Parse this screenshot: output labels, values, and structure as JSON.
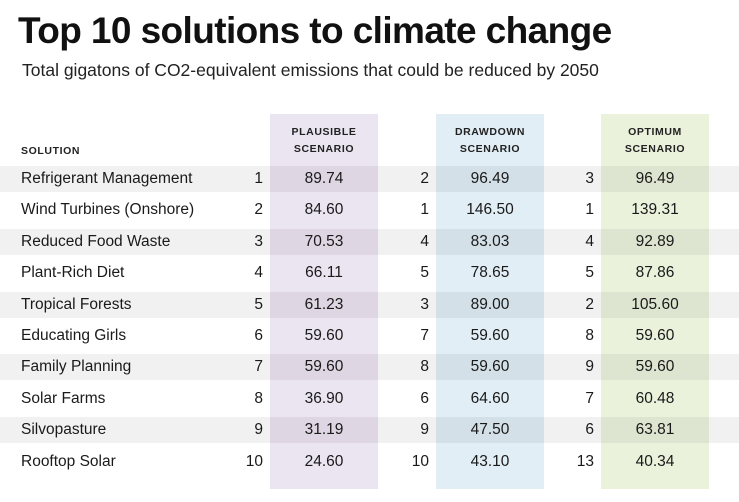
{
  "title": "Top 10 solutions to climate change",
  "subtitle": "Total gigatons of CO2-equivalent emissions that could be reduced by 2050",
  "colors": {
    "plausible": "#ebe4f1",
    "drawdown": "#e1eef5",
    "optimum": "#eaf2dc",
    "row_shade": "#ededed"
  },
  "chart_data": {
    "type": "table",
    "title": "Top 10 solutions to climate change",
    "subtitle": "Total gigatons of CO2-equivalent emissions that could be reduced by 2050",
    "columns": {
      "solution": "SOLUTION",
      "plausible": [
        "PLAUSIBLE",
        "SCENARIO"
      ],
      "drawdown": [
        "DRAWDOWN",
        "SCENARIO"
      ],
      "optimum": [
        "OPTIMUM",
        "SCENARIO"
      ]
    },
    "rows": [
      {
        "solution": "Refrigerant Management",
        "plausible_rank": "1",
        "plausible": "89.74",
        "drawdown_rank": "2",
        "drawdown": "96.49",
        "optimum_rank": "3",
        "optimum": "96.49"
      },
      {
        "solution": "Wind Turbines (Onshore)",
        "plausible_rank": "2",
        "plausible": "84.60",
        "drawdown_rank": "1",
        "drawdown": "146.50",
        "optimum_rank": "1",
        "optimum": "139.31"
      },
      {
        "solution": "Reduced Food Waste",
        "plausible_rank": "3",
        "plausible": "70.53",
        "drawdown_rank": "4",
        "drawdown": "83.03",
        "optimum_rank": "4",
        "optimum": "92.89"
      },
      {
        "solution": "Plant-Rich Diet",
        "plausible_rank": "4",
        "plausible": "66.11",
        "drawdown_rank": "5",
        "drawdown": "78.65",
        "optimum_rank": "5",
        "optimum": "87.86"
      },
      {
        "solution": "Tropical Forests",
        "plausible_rank": "5",
        "plausible": "61.23",
        "drawdown_rank": "3",
        "drawdown": "89.00",
        "optimum_rank": "2",
        "optimum": "105.60"
      },
      {
        "solution": "Educating Girls",
        "plausible_rank": "6",
        "plausible": "59.60",
        "drawdown_rank": "7",
        "drawdown": "59.60",
        "optimum_rank": "8",
        "optimum": "59.60"
      },
      {
        "solution": "Family Planning",
        "plausible_rank": "7",
        "plausible": "59.60",
        "drawdown_rank": "8",
        "drawdown": "59.60",
        "optimum_rank": "9",
        "optimum": "59.60"
      },
      {
        "solution": "Solar Farms",
        "plausible_rank": "8",
        "plausible": "36.90",
        "drawdown_rank": "6",
        "drawdown": "64.60",
        "optimum_rank": "7",
        "optimum": "60.48"
      },
      {
        "solution": "Silvopasture",
        "plausible_rank": "9",
        "plausible": "31.19",
        "drawdown_rank": "9",
        "drawdown": "47.50",
        "optimum_rank": "6",
        "optimum": "63.81"
      },
      {
        "solution": "Rooftop Solar",
        "plausible_rank": "10",
        "plausible": "24.60",
        "drawdown_rank": "10",
        "drawdown": "43.10",
        "optimum_rank": "13",
        "optimum": "40.34"
      }
    ]
  }
}
